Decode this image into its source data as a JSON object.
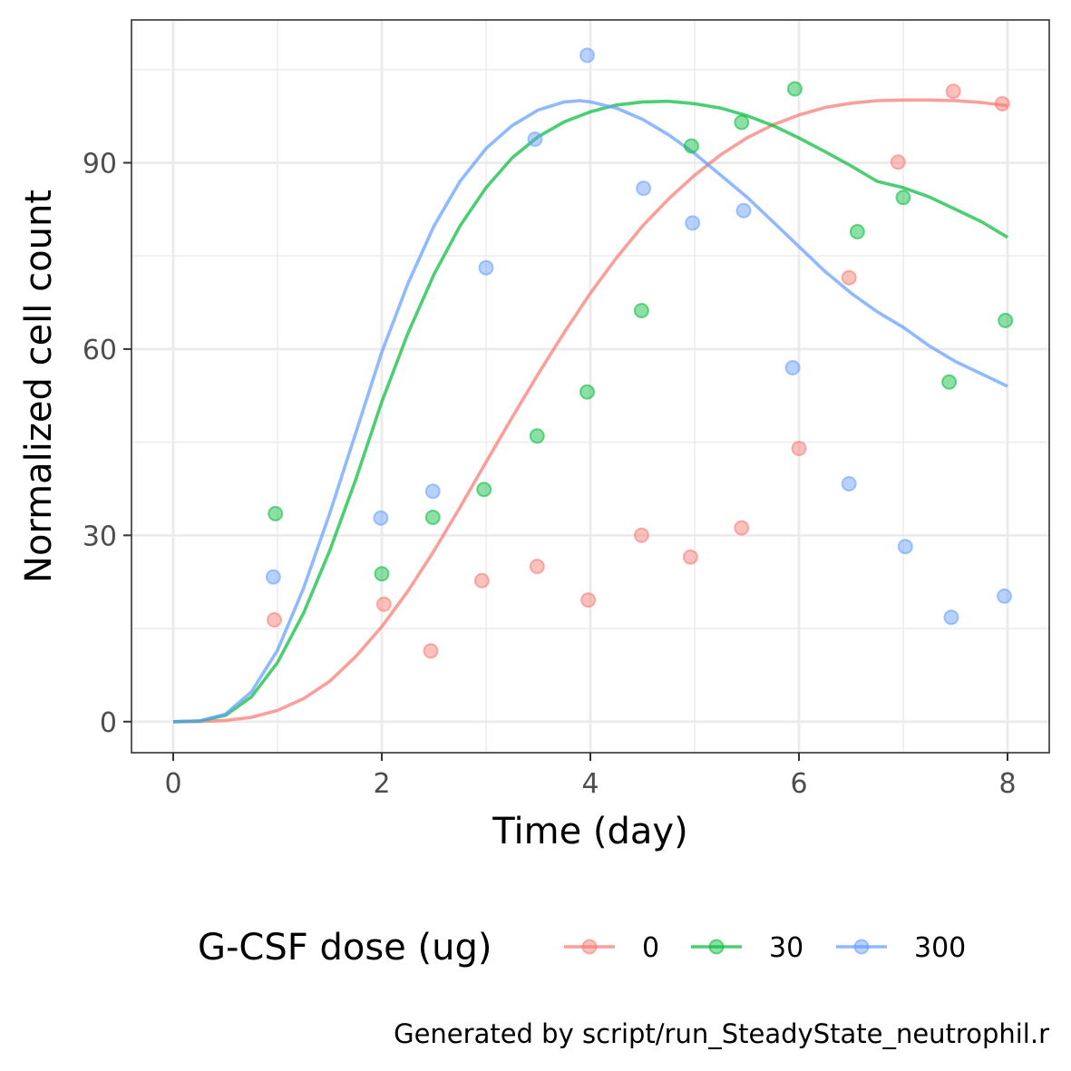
{
  "chart_data": {
    "type": "scatter",
    "xlabel": "Time (day)",
    "ylabel": "Normalized cell count",
    "xlim": [
      -0.4,
      8.4
    ],
    "ylim": [
      -5,
      113
    ],
    "xticks": [
      0,
      2,
      4,
      6,
      8
    ],
    "yticks": [
      0,
      30,
      60,
      90
    ],
    "grid": true,
    "legend": {
      "title": "G-CSF dose (ug)",
      "placement": "bottom",
      "entries": [
        "0",
        "30",
        "300"
      ]
    },
    "caption": "Generated by script/run_SteadyState_neutrophil.r",
    "series": [
      {
        "name": "0",
        "color": "#F8766D",
        "points": [
          [
            0.97,
            16.4
          ],
          [
            2.02,
            18.9
          ],
          [
            2.47,
            11.4
          ],
          [
            2.96,
            22.7
          ],
          [
            3.49,
            25.0
          ],
          [
            3.98,
            19.6
          ],
          [
            4.49,
            30.0
          ],
          [
            4.96,
            26.5
          ],
          [
            5.45,
            31.2
          ],
          [
            6.0,
            44.0
          ],
          [
            6.48,
            71.5
          ],
          [
            6.95,
            90.1
          ],
          [
            7.48,
            101.5
          ],
          [
            7.95,
            99.5
          ]
        ],
        "curve": [
          [
            0,
            0
          ],
          [
            0.25,
            0.02
          ],
          [
            0.5,
            0.2
          ],
          [
            0.75,
            0.7
          ],
          [
            1.0,
            1.8
          ],
          [
            1.25,
            3.7
          ],
          [
            1.5,
            6.5
          ],
          [
            1.75,
            10.5
          ],
          [
            2.0,
            15.3
          ],
          [
            2.25,
            21.0
          ],
          [
            2.5,
            27.5
          ],
          [
            2.75,
            34.5
          ],
          [
            3.0,
            41.8
          ],
          [
            3.25,
            49.0
          ],
          [
            3.5,
            56.0
          ],
          [
            3.75,
            62.7
          ],
          [
            4.0,
            69.0
          ],
          [
            4.25,
            74.7
          ],
          [
            4.5,
            79.8
          ],
          [
            4.75,
            84.2
          ],
          [
            5.0,
            88.0
          ],
          [
            5.25,
            91.3
          ],
          [
            5.5,
            94.0
          ],
          [
            5.75,
            96.1
          ],
          [
            6.0,
            97.7
          ],
          [
            6.25,
            98.9
          ],
          [
            6.5,
            99.6
          ],
          [
            6.75,
            100.0
          ],
          [
            7.0,
            100.1
          ],
          [
            7.25,
            100.1
          ],
          [
            7.5,
            100.0
          ],
          [
            7.75,
            99.7
          ],
          [
            8.0,
            99.2
          ]
        ]
      },
      {
        "name": "30",
        "color": "#00BA38",
        "points": [
          [
            0.98,
            33.5
          ],
          [
            2.0,
            23.8
          ],
          [
            2.49,
            32.9
          ],
          [
            2.98,
            37.4
          ],
          [
            3.49,
            46.0
          ],
          [
            3.97,
            53.1
          ],
          [
            4.49,
            66.2
          ],
          [
            4.97,
            92.7
          ],
          [
            5.45,
            96.5
          ],
          [
            5.96,
            101.9
          ],
          [
            6.56,
            78.9
          ],
          [
            7.0,
            84.4
          ],
          [
            7.44,
            54.7
          ],
          [
            7.98,
            64.6
          ]
        ],
        "curve": [
          [
            0,
            0
          ],
          [
            0.25,
            0.1
          ],
          [
            0.5,
            1.0
          ],
          [
            0.75,
            4.0
          ],
          [
            1.0,
            9.5
          ],
          [
            1.25,
            17.5
          ],
          [
            1.5,
            27.5
          ],
          [
            1.75,
            39.0
          ],
          [
            2.0,
            51.5
          ],
          [
            2.25,
            62.5
          ],
          [
            2.5,
            72.0
          ],
          [
            2.75,
            79.8
          ],
          [
            3.0,
            86.0
          ],
          [
            3.25,
            90.8
          ],
          [
            3.5,
            94.2
          ],
          [
            3.75,
            96.6
          ],
          [
            4.0,
            98.2
          ],
          [
            4.25,
            99.3
          ],
          [
            4.5,
            99.8
          ],
          [
            4.75,
            99.9
          ],
          [
            5.0,
            99.5
          ],
          [
            5.25,
            98.8
          ],
          [
            5.5,
            97.6
          ],
          [
            5.75,
            96.0
          ],
          [
            6.0,
            94.0
          ],
          [
            6.25,
            91.8
          ],
          [
            6.5,
            89.5
          ],
          [
            6.75,
            87.0
          ],
          [
            7.0,
            86.0
          ],
          [
            7.25,
            84.5
          ],
          [
            7.5,
            82.5
          ],
          [
            7.75,
            80.5
          ],
          [
            8.0,
            78.0
          ]
        ]
      },
      {
        "name": "300",
        "color": "#619CFF",
        "points": [
          [
            0.96,
            23.3
          ],
          [
            1.99,
            32.8
          ],
          [
            2.49,
            37.1
          ],
          [
            3.0,
            73.1
          ],
          [
            3.47,
            93.8
          ],
          [
            3.97,
            107.3
          ],
          [
            4.51,
            85.9
          ],
          [
            4.98,
            80.3
          ],
          [
            5.47,
            82.3
          ],
          [
            5.94,
            57.0
          ],
          [
            6.48,
            38.3
          ],
          [
            7.02,
            28.2
          ],
          [
            7.46,
            16.8
          ],
          [
            7.97,
            20.2
          ]
        ],
        "curve": [
          [
            0,
            0
          ],
          [
            0.25,
            0.1
          ],
          [
            0.5,
            1.2
          ],
          [
            0.75,
            4.8
          ],
          [
            1.0,
            11.5
          ],
          [
            1.25,
            21.5
          ],
          [
            1.5,
            33.5
          ],
          [
            1.75,
            46.5
          ],
          [
            2.0,
            59.5
          ],
          [
            2.25,
            70.5
          ],
          [
            2.5,
            79.8
          ],
          [
            2.75,
            87.0
          ],
          [
            3.0,
            92.3
          ],
          [
            3.25,
            96.0
          ],
          [
            3.5,
            98.5
          ],
          [
            3.75,
            99.8
          ],
          [
            3.9,
            100.0
          ],
          [
            4.0,
            99.8
          ],
          [
            4.25,
            98.8
          ],
          [
            4.5,
            97.0
          ],
          [
            4.75,
            94.5
          ],
          [
            5.0,
            91.5
          ],
          [
            5.25,
            88.0
          ],
          [
            5.5,
            84.5
          ],
          [
            5.75,
            80.5
          ],
          [
            6.0,
            76.5
          ],
          [
            6.25,
            72.5
          ],
          [
            6.5,
            69.0
          ],
          [
            6.75,
            66.0
          ],
          [
            7.0,
            63.5
          ],
          [
            7.25,
            60.5
          ],
          [
            7.5,
            58.0
          ],
          [
            7.75,
            56.0
          ],
          [
            8.0,
            54.0
          ]
        ]
      }
    ]
  }
}
